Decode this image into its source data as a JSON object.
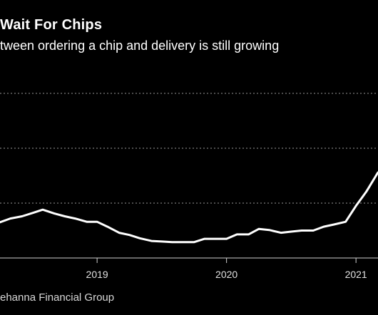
{
  "chart_data": {
    "type": "line",
    "title": "Wait For Chips",
    "subtitle": "tween ordering a chip and delivery is still growing",
    "source": "ehanna Financial Group",
    "colors": {
      "background": "#000000",
      "line": "#ffffff",
      "grid": "#9a9a9a",
      "text": "#e0e0e0"
    },
    "grid": true,
    "y_gridlines": [
      1,
      2,
      3
    ],
    "x_ticks": [
      {
        "x": 2019.0,
        "label": "2019"
      },
      {
        "x": 2020.0,
        "label": "2020"
      },
      {
        "x": 2021.0,
        "label": "2021"
      }
    ],
    "xlim": [
      2018.25,
      2021.17
    ],
    "ylim": [
      0,
      3
    ],
    "series": [
      {
        "x": [
          2018.25,
          2018.33,
          2018.42,
          2018.5,
          2018.58,
          2018.67,
          2018.75,
          2018.83,
          2018.92,
          2019.0,
          2019.08,
          2019.17,
          2019.25,
          2019.33,
          2019.42,
          2019.5,
          2019.58,
          2019.67,
          2019.75,
          2019.83,
          2019.92,
          2020.0,
          2020.08,
          2020.17,
          2020.25,
          2020.33,
          2020.42,
          2020.5,
          2020.58,
          2020.67,
          2020.75,
          2020.83,
          2020.92,
          2021.0,
          2021.08,
          2021.17
        ],
        "values": [
          0.65,
          0.72,
          0.76,
          0.82,
          0.88,
          0.81,
          0.76,
          0.72,
          0.66,
          0.66,
          0.57,
          0.46,
          0.42,
          0.36,
          0.31,
          0.3,
          0.29,
          0.29,
          0.29,
          0.35,
          0.35,
          0.35,
          0.43,
          0.43,
          0.53,
          0.51,
          0.46,
          0.48,
          0.5,
          0.5,
          0.57,
          0.61,
          0.66,
          0.95,
          1.21,
          1.56
        ]
      }
    ]
  }
}
